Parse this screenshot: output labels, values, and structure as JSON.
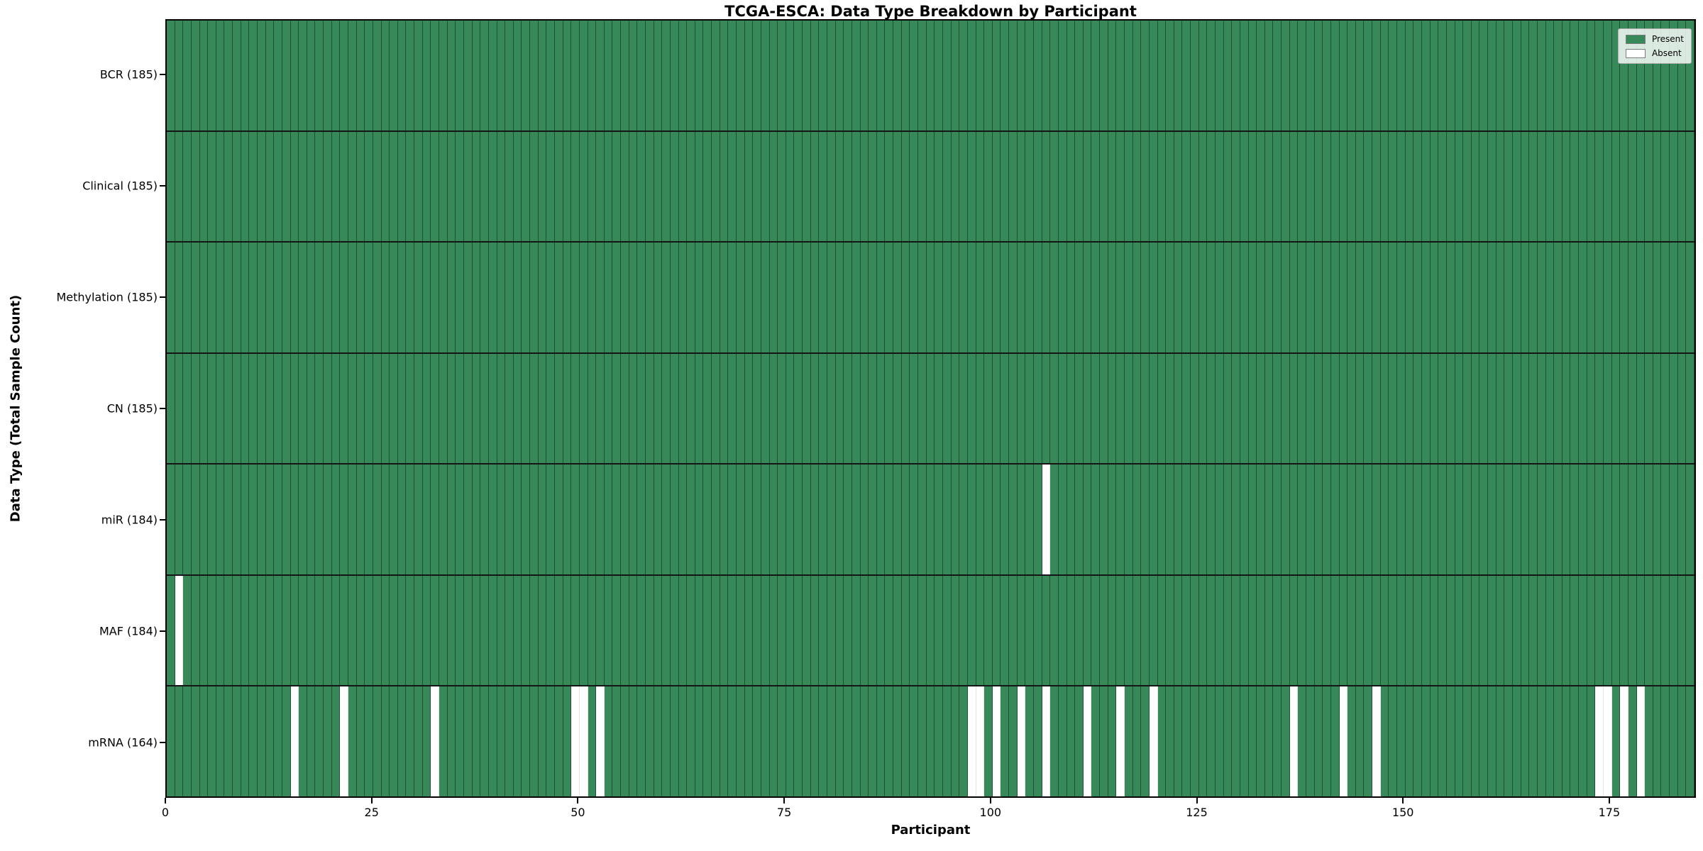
{
  "title": "TCGA-ESCA: Data Type Breakdown by Participant",
  "x_axis": {
    "label": "Participant",
    "ticks": [
      0,
      25,
      50,
      75,
      100,
      125,
      150,
      175
    ]
  },
  "y_axis": {
    "label": "Data Type (Total Sample Count)"
  },
  "legend": [
    {
      "label": "Present",
      "color": "#37895a"
    },
    {
      "label": "Absent",
      "color": "#ffffff"
    }
  ],
  "chart_data": {
    "type": "heatmap",
    "title": "TCGA-ESCA: Data Type Breakdown by Participant",
    "xlabel": "Participant",
    "ylabel": "Data Type (Total Sample Count)",
    "x_range": [
      0,
      185
    ],
    "total_participants": 185,
    "legend_position": "upper right",
    "colors": {
      "present": "#37895a",
      "absent": "#ffffff",
      "bar_edge": "rgba(8,38,22,0.55)",
      "row_separator": "#151515"
    },
    "rows": [
      {
        "label": "BCR (185)",
        "data_type": "BCR",
        "present_count": 185,
        "absent_participants": []
      },
      {
        "label": "Clinical (185)",
        "data_type": "Clinical",
        "present_count": 185,
        "absent_participants": []
      },
      {
        "label": "Methylation (185)",
        "data_type": "Methylation",
        "present_count": 185,
        "absent_participants": []
      },
      {
        "label": "CN (185)",
        "data_type": "CN",
        "present_count": 185,
        "absent_participants": []
      },
      {
        "label": "miR (184)",
        "data_type": "miR",
        "present_count": 184,
        "absent_participants": [
          106
        ]
      },
      {
        "label": "MAF (184)",
        "data_type": "MAF",
        "present_count": 184,
        "absent_participants": [
          1
        ]
      },
      {
        "label": "mRNA (164)",
        "data_type": "mRNA",
        "present_count": 164,
        "absent_participants": [
          15,
          21,
          32,
          49,
          50,
          52,
          97,
          98,
          100,
          103,
          106,
          111,
          115,
          119,
          136,
          142,
          146,
          173,
          174,
          176,
          178
        ]
      }
    ]
  }
}
